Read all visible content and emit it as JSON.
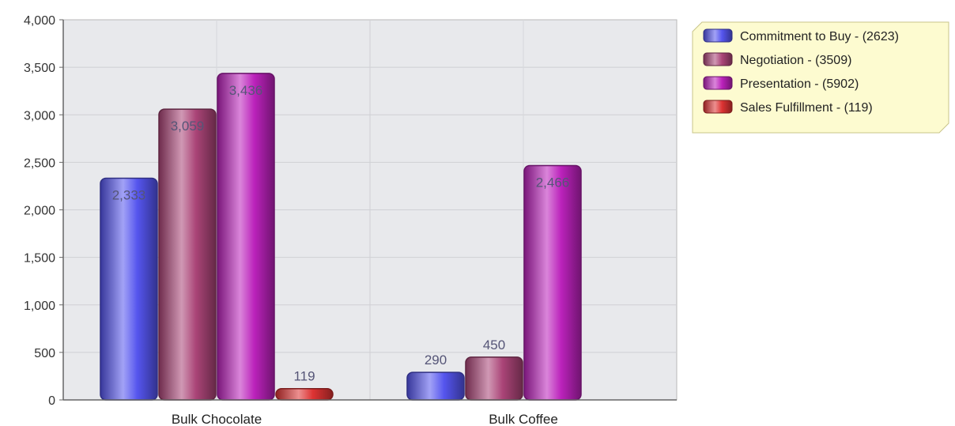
{
  "chart_data": {
    "type": "bar",
    "categories": [
      "Bulk Chocolate",
      "Bulk Coffee"
    ],
    "series": [
      {
        "name": "Commitment to Buy - (2623)",
        "color": "#5555ee",
        "values": [
          2333,
          290
        ]
      },
      {
        "name": "Negotiation - (3509)",
        "color": "#aa4477",
        "values": [
          3059,
          450
        ]
      },
      {
        "name": "Presentation - (5902)",
        "color": "#bb22bb",
        "values": [
          3436,
          2466
        ]
      },
      {
        "name": "Sales Fulfillment - (119)",
        "color": "#dd3333",
        "values": [
          119,
          null
        ]
      }
    ],
    "data_labels": [
      [
        "2,333",
        "290"
      ],
      [
        "3,059",
        "450"
      ],
      [
        "3,436",
        "2,466"
      ],
      [
        "119",
        ""
      ]
    ],
    "y_ticks": [
      "0",
      "500",
      "1,000",
      "1,500",
      "2,000",
      "2,500",
      "3,000",
      "3,500",
      "4,000"
    ],
    "ylim": [
      0,
      4000
    ],
    "grid": true,
    "legend": "top-right",
    "plot_background": "#e8e9ec"
  }
}
